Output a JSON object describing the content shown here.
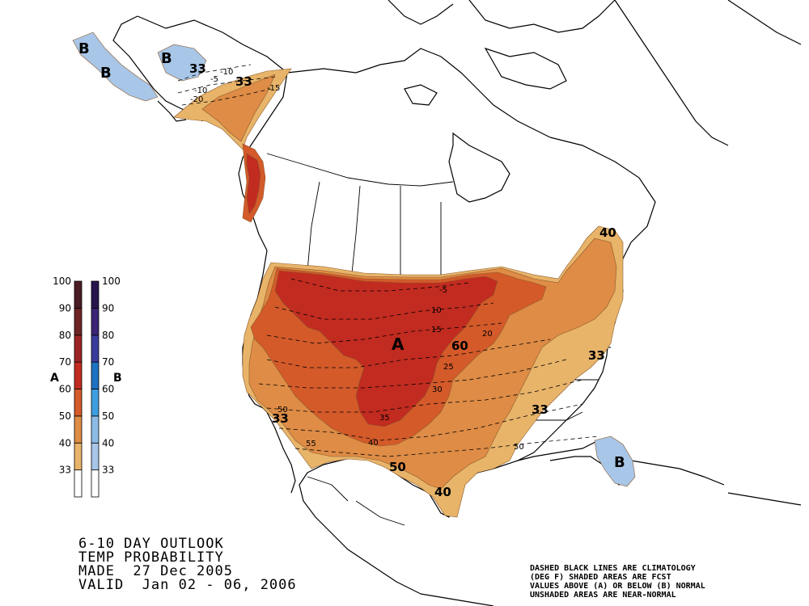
{
  "map": {
    "title_lines": [
      "6-10 DAY OUTLOOK",
      "TEMP PROBABILITY",
      "MADE  27 Dec 2005",
      "VALID  Jan 02 - 06, 2006"
    ],
    "note_lines": [
      "DASHED BLACK LINES ARE CLIMATOLOGY",
      "(DEG F) SHADED AREAS ARE FCST",
      "VALUES ABOVE (A) OR BELOW (B) NORMAL",
      "UNSHADED AREAS ARE NEAR-NORMAL"
    ],
    "legend": {
      "levels": [
        "100",
        "90",
        "80",
        "70",
        "60",
        "50",
        "40",
        "33"
      ],
      "above_letter": "A",
      "below_letter": "B",
      "above_colors": [
        "#ffffff",
        "#e8b46a",
        "#de8c46",
        "#d45a2a",
        "#c22b20",
        "#9c2424",
        "#6e2424",
        "#4a1c24"
      ],
      "below_colors": [
        "#ffffff",
        "#a8c6e8",
        "#8cbce6",
        "#3e9ee0",
        "#1e72c2",
        "#3a3c9c",
        "#3c2476",
        "#28144c"
      ]
    },
    "region_labels": {
      "a_center": "A",
      "b_alaska_1": "B",
      "b_alaska_2": "B",
      "b_alaska_3": "B",
      "b_florida": "B",
      "p33_alaska_1": "33",
      "p33_alaska_2": "33",
      "p33_sw": "33",
      "p33_se": "33",
      "p33_east": "33",
      "p40_ne": "40",
      "p40_tx": "40",
      "p50_tx": "50",
      "p60_central": "60"
    },
    "climatology_labels": [
      "-5",
      "10",
      "15",
      "20",
      "25",
      "30",
      "35",
      "40",
      "50",
      "55",
      "50",
      "-10",
      "-15",
      "-20",
      "-5",
      "-10"
    ]
  }
}
